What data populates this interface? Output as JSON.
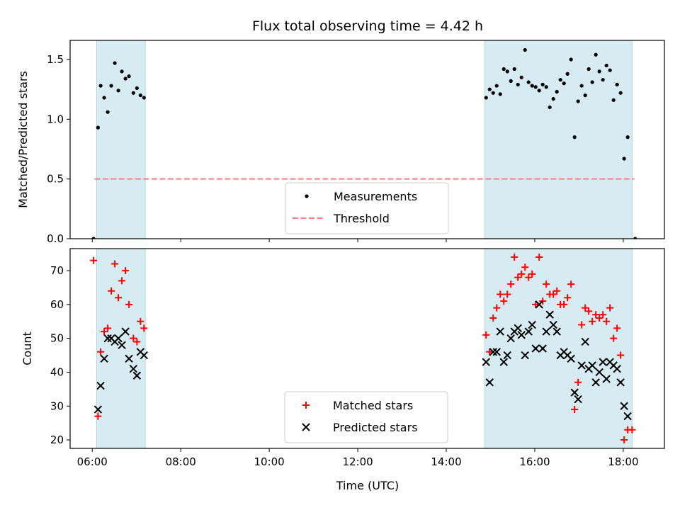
{
  "chart_data": {
    "title": "Flux total observing time = 4.42 h",
    "xlabel": "Time (UTC)",
    "xlim": [
      5.5,
      18.93
    ],
    "xticks": [
      6,
      8,
      10,
      12,
      14,
      16,
      18
    ],
    "xtick_labels": [
      "06:00",
      "08:00",
      "10:00",
      "12:00",
      "14:00",
      "16:00",
      "18:00"
    ],
    "shaded_intervals": [
      [
        6.1,
        7.2
      ],
      [
        14.87,
        18.2
      ]
    ],
    "shade_color": "#add8e6",
    "panels": [
      {
        "type": "scatter",
        "ylabel": "Matched/Predicted stars",
        "ylim": [
          0,
          1.66
        ],
        "yticks": [
          0.0,
          0.5,
          1.0,
          1.5
        ],
        "ytick_labels": [
          "0.0",
          "0.5",
          "1.0",
          "1.5"
        ],
        "threshold": {
          "name": "Threshold",
          "y": 0.5,
          "x_range": [
            6.05,
            18.25
          ],
          "color": "#ff7f7f"
        },
        "series": [
          {
            "name": "Measurements",
            "marker": "dot",
            "color": "#000000",
            "points": [
              [
                6.03,
                0.0
              ],
              [
                6.13,
                0.93
              ],
              [
                6.19,
                1.28
              ],
              [
                6.27,
                1.18
              ],
              [
                6.35,
                1.06
              ],
              [
                6.43,
                1.28
              ],
              [
                6.51,
                1.47
              ],
              [
                6.59,
                1.24
              ],
              [
                6.67,
                1.4
              ],
              [
                6.75,
                1.34
              ],
              [
                6.83,
                1.36
              ],
              [
                6.93,
                1.22
              ],
              [
                7.01,
                1.26
              ],
              [
                7.09,
                1.2
              ],
              [
                7.17,
                1.18
              ],
              [
                14.9,
                1.18
              ],
              [
                14.98,
                1.25
              ],
              [
                15.06,
                1.22
              ],
              [
                15.14,
                1.28
              ],
              [
                15.22,
                1.21
              ],
              [
                15.3,
                1.42
              ],
              [
                15.38,
                1.4
              ],
              [
                15.46,
                1.32
              ],
              [
                15.54,
                1.42
              ],
              [
                15.62,
                1.29
              ],
              [
                15.7,
                1.35
              ],
              [
                15.78,
                1.58
              ],
              [
                15.86,
                1.31
              ],
              [
                15.94,
                1.28
              ],
              [
                16.02,
                1.27
              ],
              [
                16.1,
                1.24
              ],
              [
                16.18,
                1.29
              ],
              [
                16.26,
                1.27
              ],
              [
                16.34,
                1.1
              ],
              [
                16.42,
                1.17
              ],
              [
                16.5,
                1.23
              ],
              [
                16.58,
                1.33
              ],
              [
                16.66,
                1.3
              ],
              [
                16.74,
                1.38
              ],
              [
                16.82,
                1.5
              ],
              [
                16.9,
                0.85
              ],
              [
                16.98,
                1.15
              ],
              [
                17.06,
                1.28
              ],
              [
                17.14,
                1.2
              ],
              [
                17.22,
                1.42
              ],
              [
                17.3,
                1.31
              ],
              [
                17.38,
                1.54
              ],
              [
                17.46,
                1.4
              ],
              [
                17.54,
                1.33
              ],
              [
                17.62,
                1.45
              ],
              [
                17.7,
                1.41
              ],
              [
                17.78,
                1.16
              ],
              [
                17.86,
                1.29
              ],
              [
                17.94,
                1.22
              ],
              [
                18.02,
                0.67
              ],
              [
                18.1,
                0.85
              ],
              [
                18.27,
                0.0
              ]
            ]
          }
        ],
        "legend": {
          "position": "lower-center",
          "entries": [
            {
              "label": "Measurements",
              "symbol": "dot"
            },
            {
              "label": "Threshold",
              "symbol": "dashed-line"
            }
          ]
        }
      },
      {
        "type": "scatter",
        "ylabel": "Count",
        "ylim": [
          17.5,
          76.5
        ],
        "yticks": [
          20,
          30,
          40,
          50,
          60,
          70
        ],
        "ytick_labels": [
          "20",
          "30",
          "40",
          "50",
          "60",
          "70"
        ],
        "series": [
          {
            "name": "Matched stars",
            "marker": "plus",
            "color": "#ff0000",
            "points": [
              [
                6.03,
                73
              ],
              [
                6.13,
                27
              ],
              [
                6.19,
                46
              ],
              [
                6.27,
                52
              ],
              [
                6.35,
                53
              ],
              [
                6.43,
                64
              ],
              [
                6.51,
                72
              ],
              [
                6.59,
                62
              ],
              [
                6.67,
                67
              ],
              [
                6.75,
                70
              ],
              [
                6.83,
                60
              ],
              [
                6.93,
                50
              ],
              [
                7.01,
                49
              ],
              [
                7.09,
                55
              ],
              [
                7.17,
                53
              ],
              [
                14.9,
                51
              ],
              [
                14.98,
                46
              ],
              [
                15.06,
                56
              ],
              [
                15.14,
                59
              ],
              [
                15.22,
                63
              ],
              [
                15.3,
                61
              ],
              [
                15.38,
                63
              ],
              [
                15.46,
                66
              ],
              [
                15.54,
                74
              ],
              [
                15.62,
                68
              ],
              [
                15.7,
                69
              ],
              [
                15.78,
                71
              ],
              [
                15.86,
                68
              ],
              [
                15.94,
                69
              ],
              [
                16.02,
                60
              ],
              [
                16.1,
                74
              ],
              [
                16.18,
                61
              ],
              [
                16.26,
                66
              ],
              [
                16.34,
                63
              ],
              [
                16.42,
                63
              ],
              [
                16.5,
                64
              ],
              [
                16.58,
                60
              ],
              [
                16.66,
                60
              ],
              [
                16.74,
                62
              ],
              [
                16.82,
                66
              ],
              [
                16.9,
                29
              ],
              [
                16.98,
                37
              ],
              [
                17.06,
                54
              ],
              [
                17.14,
                59
              ],
              [
                17.22,
                58
              ],
              [
                17.3,
                55
              ],
              [
                17.38,
                57
              ],
              [
                17.46,
                56
              ],
              [
                17.54,
                57
              ],
              [
                17.62,
                55
              ],
              [
                17.7,
                59
              ],
              [
                17.78,
                50
              ],
              [
                17.86,
                53
              ],
              [
                17.94,
                45
              ],
              [
                18.02,
                20
              ],
              [
                18.1,
                23
              ],
              [
                18.2,
                23
              ]
            ]
          },
          {
            "name": "Predicted stars",
            "marker": "x",
            "color": "#000000",
            "points": [
              [
                6.13,
                29
              ],
              [
                6.19,
                36
              ],
              [
                6.27,
                44
              ],
              [
                6.35,
                50
              ],
              [
                6.43,
                50
              ],
              [
                6.51,
                49
              ],
              [
                6.59,
                50
              ],
              [
                6.67,
                48
              ],
              [
                6.75,
                52
              ],
              [
                6.83,
                44
              ],
              [
                6.93,
                41
              ],
              [
                7.01,
                39
              ],
              [
                7.09,
                46
              ],
              [
                7.17,
                45
              ],
              [
                14.9,
                43
              ],
              [
                14.98,
                37
              ],
              [
                15.06,
                46
              ],
              [
                15.14,
                46
              ],
              [
                15.22,
                52
              ],
              [
                15.3,
                43
              ],
              [
                15.38,
                45
              ],
              [
                15.46,
                50
              ],
              [
                15.54,
                52
              ],
              [
                15.62,
                53
              ],
              [
                15.7,
                51
              ],
              [
                15.78,
                45
              ],
              [
                15.86,
                52
              ],
              [
                15.94,
                54
              ],
              [
                16.02,
                47
              ],
              [
                16.1,
                60
              ],
              [
                16.18,
                47
              ],
              [
                16.26,
                52
              ],
              [
                16.34,
                57
              ],
              [
                16.42,
                54
              ],
              [
                16.5,
                52
              ],
              [
                16.58,
                45
              ],
              [
                16.66,
                46
              ],
              [
                16.74,
                45
              ],
              [
                16.82,
                44
              ],
              [
                16.9,
                34
              ],
              [
                16.98,
                32
              ],
              [
                17.06,
                42
              ],
              [
                17.14,
                49
              ],
              [
                17.22,
                41
              ],
              [
                17.3,
                42
              ],
              [
                17.38,
                37
              ],
              [
                17.46,
                40
              ],
              [
                17.54,
                43
              ],
              [
                17.62,
                38
              ],
              [
                17.7,
                43
              ],
              [
                17.78,
                42
              ],
              [
                17.86,
                41
              ],
              [
                17.94,
                37
              ],
              [
                18.02,
                30
              ],
              [
                18.1,
                27
              ]
            ]
          }
        ],
        "legend": {
          "position": "lower-center",
          "entries": [
            {
              "label": "Matched stars",
              "symbol": "plus"
            },
            {
              "label": "Predicted stars",
              "symbol": "x"
            }
          ]
        }
      }
    ]
  }
}
